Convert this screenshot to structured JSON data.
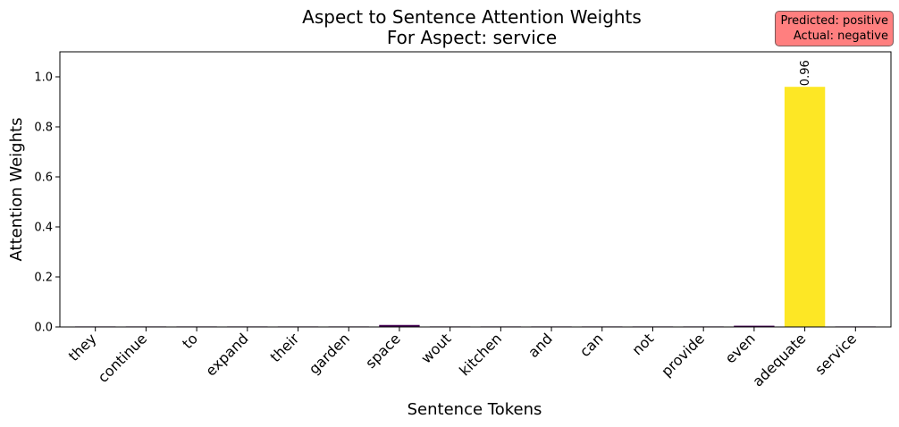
{
  "chart_data": {
    "type": "bar",
    "title": "Aspect to Sentence Attention Weights",
    "subtitle": "For Aspect: service",
    "xlabel": "Sentence Tokens",
    "ylabel": "Attention Weights",
    "ylim": [
      0,
      1.1
    ],
    "yticks": [
      "0.0",
      "0.2",
      "0.4",
      "0.6",
      "0.8",
      "1.0"
    ],
    "categories": [
      "they",
      "continue",
      "to",
      "expand",
      "their",
      "garden",
      "space",
      "wout",
      "kitchen",
      "and",
      "can",
      "not",
      "provide",
      "even",
      "adequate",
      "service"
    ],
    "values": [
      0.0005,
      0.0005,
      0.0005,
      0.0005,
      0.0005,
      0.0005,
      0.008,
      0.0008,
      0.0005,
      0.0005,
      0.0005,
      0.0005,
      0.001,
      0.005,
      0.96,
      0.0005
    ],
    "bar_colors": [
      "#440154",
      "#440154",
      "#440154",
      "#440154",
      "#440154",
      "#440154",
      "#440154",
      "#440154",
      "#440154",
      "#440154",
      "#440154",
      "#440154",
      "#440154",
      "#440154",
      "#fde725",
      "#440154"
    ],
    "data_labels": [
      {
        "index": 14,
        "text": "0.96"
      }
    ]
  },
  "prediction": {
    "predicted": "Predicted: positive",
    "actual": "Actual: negative",
    "box_color": "#ff7f7f"
  }
}
